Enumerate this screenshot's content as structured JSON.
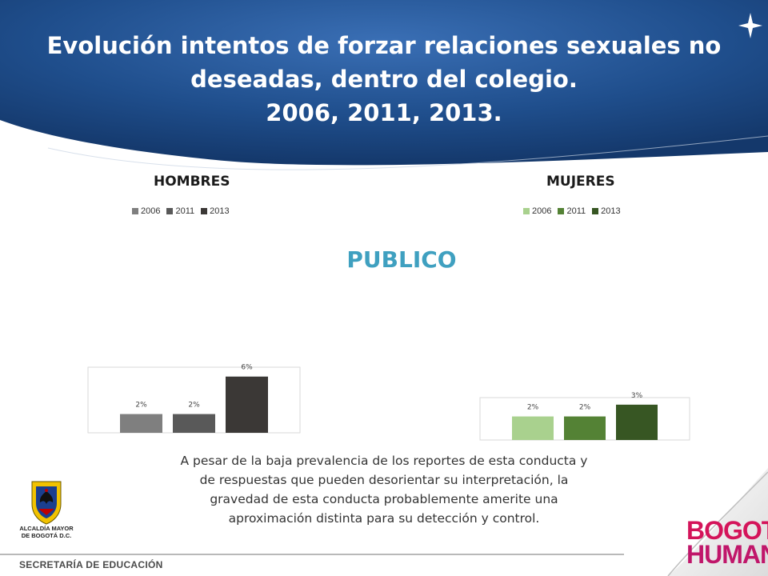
{
  "title": {
    "line1": "Evolución intentos de forzar relaciones sexuales no",
    "line2": "deseadas, dentro del colegio.",
    "line3": "2006, 2011, 2013."
  },
  "section": "PUBLICO",
  "chart_data": [
    {
      "type": "bar",
      "title": "HOMBRES",
      "categories": [
        "2006",
        "2011",
        "2013"
      ],
      "values": [
        2,
        2,
        6
      ],
      "labels": [
        "2%",
        "2%",
        "6%"
      ],
      "colors": [
        "#7f7f7f",
        "#595959",
        "#3b3836"
      ],
      "legend": "top",
      "unit": "%",
      "ylim": [
        0,
        7
      ]
    },
    {
      "type": "bar",
      "title": "MUJERES",
      "categories": [
        "2006",
        "2011",
        "2013"
      ],
      "values": [
        2,
        2,
        3
      ],
      "labels": [
        "2%",
        "2%",
        "3%"
      ],
      "colors": [
        "#a9d18e",
        "#548235",
        "#375623"
      ],
      "legend": "top",
      "unit": "%",
      "ylim": [
        0,
        3.6
      ]
    }
  ],
  "body_text": {
    "line1": "A pesar de la baja prevalencia de los reportes de esta conducta y",
    "line2": "de respuestas que pueden desorientar su interpretación, la",
    "line3": "gravedad de esta conducta probablemente amerite una",
    "line4": "aproximación distinta para su detección y control."
  },
  "logo": {
    "caption_line1": "ALCALDÍA MAYOR",
    "caption_line2": "DE BOGOTÁ D.C."
  },
  "footer": "SECRETARÍA DE EDUCACIÓN",
  "brand": {
    "line1": "BOGOTÁ",
    "line2": "HUMANA"
  },
  "colors": {
    "header_blue": "#1f4e8c",
    "accent_teal": "#3fa0c0"
  }
}
